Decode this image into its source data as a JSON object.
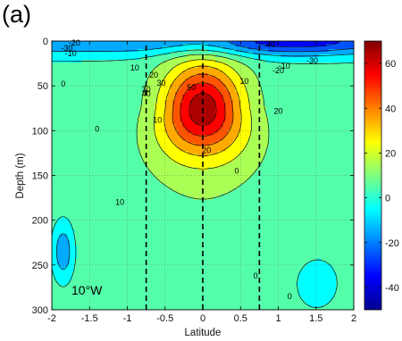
{
  "panel_label": "(a)",
  "chart_data": {
    "type": "heatmap",
    "subtype": "filled-contour",
    "title": "",
    "xlabel": "Latitude",
    "ylabel": "Depth (m)",
    "xlim": [
      -2,
      2
    ],
    "ylim": [
      0,
      300
    ],
    "y_reversed": true,
    "xticks": [
      -2,
      -1.5,
      -1,
      -0.5,
      0,
      0.5,
      1,
      1.5,
      2
    ],
    "yticks": [
      0,
      50,
      100,
      150,
      200,
      250,
      300
    ],
    "grid": true,
    "colorbar": {
      "colormap": "jet",
      "range": [
        -50,
        70
      ],
      "ticks": [
        -40,
        -20,
        0,
        20,
        40,
        60
      ]
    },
    "contour_interval": 10,
    "contour_labels": [
      "-20",
      "-30",
      "-10",
      "0",
      "10",
      "20",
      "30",
      "40",
      "50",
      "0",
      "10",
      "20",
      "30",
      "40",
      "0",
      "10",
      "20",
      "10",
      "0",
      "0",
      "-10",
      "-20",
      "-30"
    ],
    "core": {
      "lat": 0,
      "depth": 75,
      "max_value": 60
    },
    "surface_min": {
      "value": -40,
      "depth": 0
    },
    "dashed_lines_lat": [
      -0.75,
      0,
      0.75
    ],
    "annotation": "10°W"
  }
}
